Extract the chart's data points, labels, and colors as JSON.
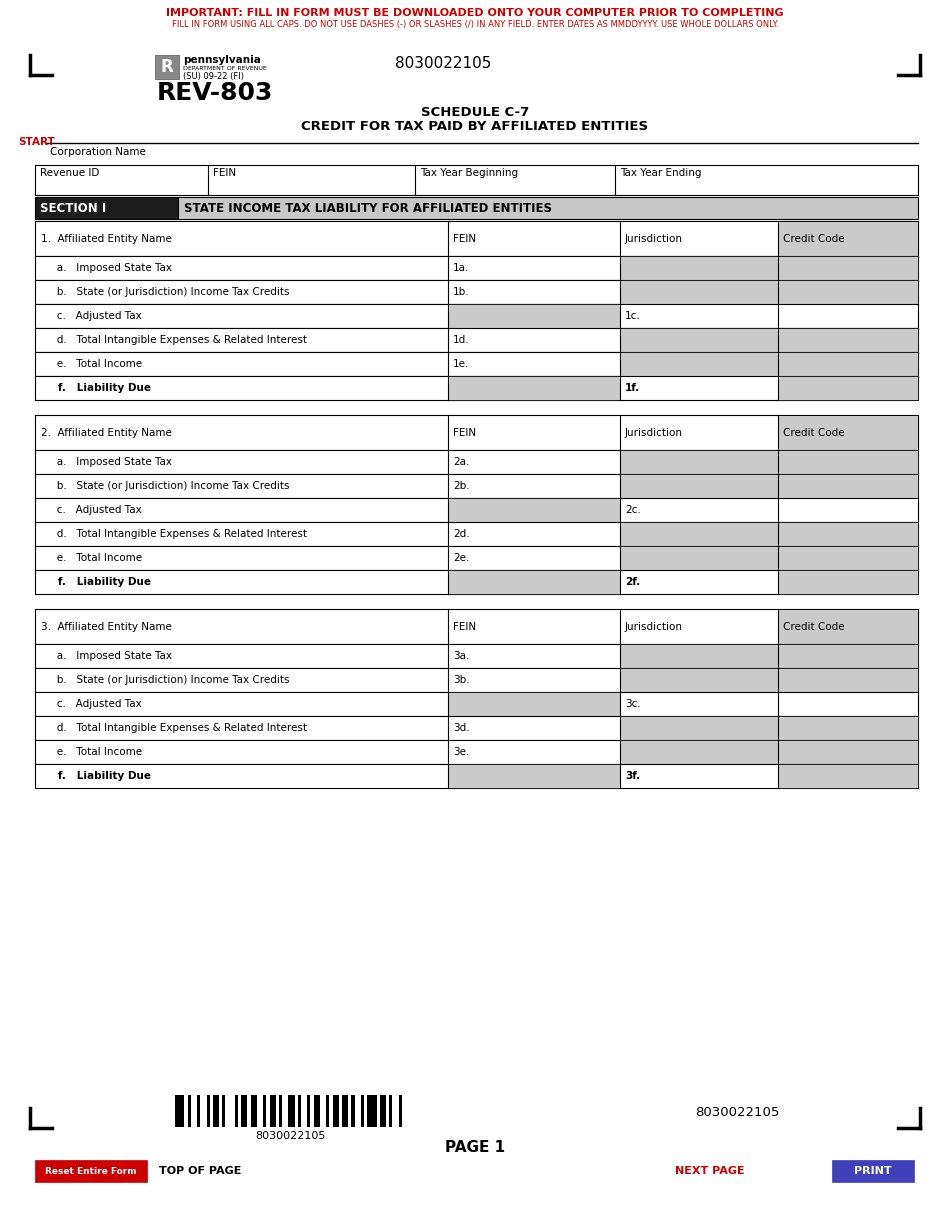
{
  "title_important": "IMPORTANT: FILL IN FORM MUST BE DOWNLOADED ONTO YOUR COMPUTER PRIOR TO COMPLETING",
  "title_sub": "FILL IN FORM USING ALL CAPS. DO NOT USE DASHES (-) OR SLASHES (/) IN ANY FIELD. ENTER DATES AS MMDDYYYY. USE WHOLE DOLLARS ONLY.",
  "form_number": "REV-803",
  "form_code": "(SU) 09-22 (FI)",
  "barcode_number": "8030022105",
  "schedule_title": "SCHEDULE C-7",
  "schedule_subtitle": "CREDIT FOR TAX PAID BY AFFILIATED ENTITIES",
  "start_label": "START",
  "corp_name_label": "Corporation Name",
  "header_row": [
    "Revenue ID",
    "FEIN",
    "Tax Year Beginning",
    "Tax Year Ending"
  ],
  "section1_label": "SECTION I",
  "section1_title": "STATE INCOME TAX LIABILITY FOR AFFILIATED ENTITIES",
  "entity_header": [
    "Affiliated Entity Name",
    "FEIN",
    "Jurisdiction",
    "Credit Code"
  ],
  "row_labels": [
    "Imposed State Tax",
    "State (or Jurisdiction) Income Tax Credits",
    "Adjusted Tax",
    "Total Intangible Expenses & Related Interest",
    "Total Income",
    "Liability Due"
  ],
  "row_codes": [
    "a",
    "b",
    "c",
    "d",
    "e",
    "f"
  ],
  "page_label": "PAGE 1",
  "reset_label": "Reset Entire Form",
  "top_label": "TOP OF PAGE",
  "next_label": "NEXT PAGE",
  "print_label": "PRINT",
  "colors": {
    "red": "#CC0000",
    "black": "#000000",
    "white": "#FFFFFF",
    "light_gray": "#D3D3D3",
    "dark_header": "#1C1C1C",
    "section_gray": "#C8C8C8",
    "blue_button": "#4040BB",
    "input_gray": "#CACACA"
  }
}
